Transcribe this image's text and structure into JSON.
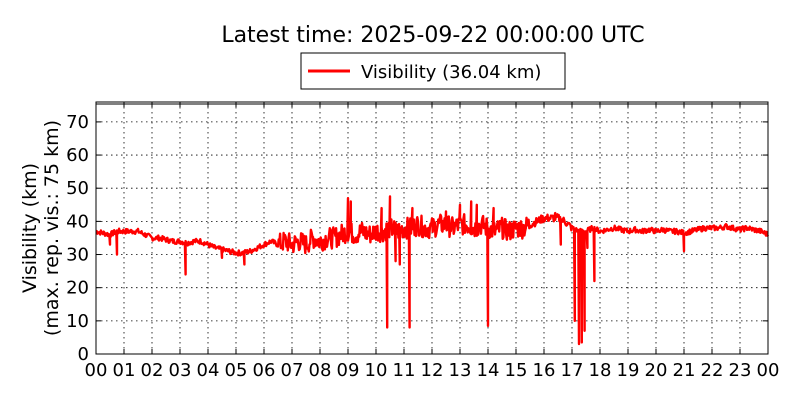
{
  "chart_data": {
    "type": "line",
    "title": "Latest time: 2025-09-22 00:00:00 UTC",
    "ylabel_lines": [
      "Visibility (km)",
      "(max. rep. vis.: 75 km)"
    ],
    "xlabel": "",
    "xlim": [
      0,
      24
    ],
    "ylim": [
      0,
      76
    ],
    "yticks": [
      0,
      10,
      20,
      30,
      40,
      50,
      60,
      70
    ],
    "xticks": [
      0,
      1,
      2,
      3,
      4,
      5,
      6,
      7,
      8,
      9,
      10,
      11,
      12,
      13,
      14,
      15,
      16,
      17,
      18,
      19,
      20,
      21,
      22,
      23,
      24
    ],
    "xtick_labels": [
      "00",
      "01",
      "02",
      "03",
      "04",
      "05",
      "06",
      "07",
      "08",
      "09",
      "10",
      "11",
      "12",
      "13",
      "14",
      "15",
      "16",
      "17",
      "18",
      "19",
      "20",
      "21",
      "22",
      "23",
      "00"
    ],
    "grid": true,
    "legend_position": "top-center",
    "series": [
      {
        "name": "Visibility (36.04 km)",
        "color": "#ff0000",
        "x": [
          0,
          0.25,
          0.5,
          0.75,
          1,
          1.25,
          1.5,
          1.75,
          2,
          2.25,
          2.5,
          2.75,
          3,
          3.25,
          3.5,
          3.75,
          4,
          4.25,
          4.5,
          4.75,
          5,
          5.25,
          5.5,
          5.75,
          6,
          6.25,
          6.5,
          6.75,
          7,
          7.25,
          7.5,
          7.75,
          8,
          8.25,
          8.5,
          8.75,
          9,
          9.25,
          9.5,
          9.75,
          10,
          10.25,
          10.5,
          10.75,
          11,
          11.25,
          11.5,
          11.75,
          12,
          12.25,
          12.5,
          12.75,
          13,
          13.25,
          13.5,
          13.75,
          14,
          14.25,
          14.5,
          14.75,
          15,
          15.25,
          15.5,
          15.75,
          16,
          16.25,
          16.5,
          16.75,
          17,
          17.25,
          17.5,
          17.75,
          18,
          18.25,
          18.5,
          18.75,
          19,
          19.25,
          19.5,
          19.75,
          20,
          20.25,
          20.5,
          20.75,
          21,
          21.25,
          21.5,
          21.75,
          22,
          22.25,
          22.5,
          22.75,
          23,
          23.25,
          23.5,
          23.75,
          24
        ],
        "y": [
          37,
          36.5,
          36,
          37,
          37,
          37,
          37,
          36,
          35,
          35,
          34.5,
          34,
          34,
          33.5,
          34,
          34,
          33,
          32,
          31.5,
          31,
          30.5,
          30.5,
          31,
          32,
          33,
          34,
          33,
          34,
          33,
          34,
          33,
          35,
          34,
          35,
          35,
          36,
          37,
          36,
          37,
          36,
          37,
          37,
          38,
          37,
          38,
          38,
          39,
          38,
          38,
          39,
          39,
          38,
          39,
          39,
          38,
          39,
          38,
          37,
          38,
          37,
          38,
          38,
          39,
          40,
          41,
          41,
          41,
          40,
          38,
          37,
          37,
          38,
          37,
          37.5,
          38,
          37.5,
          37,
          37.5,
          37,
          37.5,
          37,
          37.5,
          37,
          37,
          36.5,
          37,
          37.5,
          38,
          38,
          38,
          38.5,
          38,
          37.5,
          38,
          37.5,
          37,
          36
        ]
      }
    ],
    "dips": [
      {
        "x": 0.5,
        "y": 33
      },
      {
        "x": 0.75,
        "y": 30
      },
      {
        "x": 3.2,
        "y": 24
      },
      {
        "x": 4.5,
        "y": 29
      },
      {
        "x": 5.3,
        "y": 27
      },
      {
        "x": 10.4,
        "y": 8
      },
      {
        "x": 10.7,
        "y": 28
      },
      {
        "x": 10.85,
        "y": 27
      },
      {
        "x": 11.2,
        "y": 8
      },
      {
        "x": 14.0,
        "y": 8.5
      },
      {
        "x": 16.6,
        "y": 33
      },
      {
        "x": 17.1,
        "y": 10
      },
      {
        "x": 17.25,
        "y": 3
      },
      {
        "x": 17.35,
        "y": 3.5
      },
      {
        "x": 17.45,
        "y": 7
      },
      {
        "x": 17.55,
        "y": 32
      },
      {
        "x": 17.8,
        "y": 22
      },
      {
        "x": 21.0,
        "y": 31
      }
    ],
    "spikes": [
      {
        "x": 9.0,
        "y": 47
      },
      {
        "x": 9.1,
        "y": 46
      },
      {
        "x": 10.2,
        "y": 44
      },
      {
        "x": 10.5,
        "y": 47.5
      },
      {
        "x": 11.3,
        "y": 44
      },
      {
        "x": 12.5,
        "y": 43
      },
      {
        "x": 13.0,
        "y": 45
      },
      {
        "x": 13.4,
        "y": 46
      },
      {
        "x": 13.6,
        "y": 45
      },
      {
        "x": 14.2,
        "y": 44
      },
      {
        "x": 16.4,
        "y": 42.5
      }
    ]
  }
}
